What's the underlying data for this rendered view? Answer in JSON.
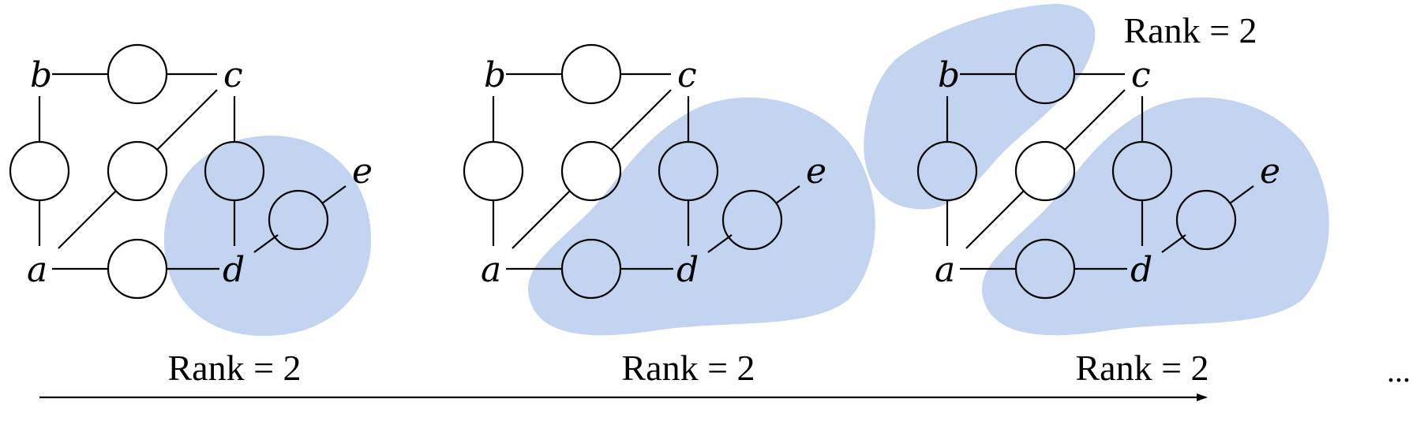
{
  "colors": {
    "highlight": "#C2D4EF",
    "stroke": "#000000"
  },
  "vertices": {
    "a": "a",
    "b": "b",
    "c": "c",
    "d": "d",
    "e": "e"
  },
  "panels": [
    {
      "rank_label": "Rank = 2"
    },
    {
      "rank_label": "Rank = 2"
    },
    {
      "rank_label": "Rank = 2",
      "top_rank_label": "Rank = 2"
    }
  ],
  "ellipsis": "..."
}
